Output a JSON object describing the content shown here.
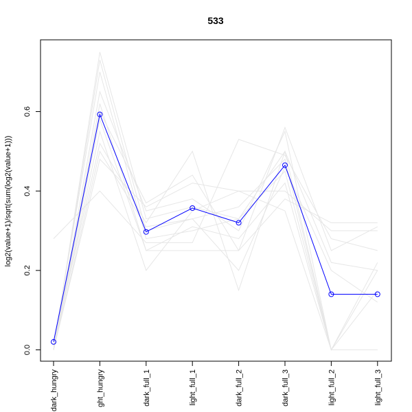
{
  "chart_data": {
    "type": "line",
    "title": "533",
    "xlabel": "",
    "ylabel": "log2(value+1)/sqrt(sum(log2(value+1)))",
    "categories": [
      "dark_hungry",
      "light_hungry",
      "dark_full_1",
      "light_full_1",
      "dark_full_2",
      "dark_full_3",
      "light_full_2",
      "light_full_3"
    ],
    "category_labels_visible": [
      "dark_hungry",
      "ght_hungry",
      "dark_full_1",
      "light_full_1",
      "dark_full_2",
      "dark_full_3",
      "light_full_2",
      "light_full_3"
    ],
    "ylim": [
      0.0,
      0.7
    ],
    "yticks": [
      0.0,
      0.2,
      0.4,
      0.6
    ],
    "ytick_labels": [
      "0.0",
      "0.2",
      "0.4",
      "0.6"
    ],
    "grid": false,
    "highlight_series": {
      "values": [
        0.02,
        0.593,
        0.297,
        0.357,
        0.32,
        0.465,
        0.14,
        0.14
      ],
      "color": "#0000ff",
      "marker": "open-circle"
    },
    "background_series_color": "#e6e6e6",
    "background_series": [
      {
        "values": [
          0.0,
          0.75,
          0.33,
          0.36,
          0.33,
          0.5,
          0.0,
          0.0
        ]
      },
      {
        "values": [
          0.0,
          0.73,
          0.3,
          0.33,
          0.36,
          0.48,
          0.0,
          0.22
        ]
      },
      {
        "values": [
          0.01,
          0.7,
          0.28,
          0.3,
          0.33,
          0.45,
          0.0,
          0.15
        ]
      },
      {
        "values": [
          0.0,
          0.65,
          0.35,
          0.38,
          0.3,
          0.55,
          0.0,
          0.0
        ]
      },
      {
        "values": [
          0.0,
          0.62,
          0.25,
          0.31,
          0.28,
          0.42,
          0.0,
          0.2
        ]
      },
      {
        "values": [
          0.0,
          0.6,
          0.37,
          0.44,
          0.25,
          0.56,
          0.25,
          0.31
        ]
      },
      {
        "values": [
          0.0,
          0.55,
          0.2,
          0.35,
          0.4,
          0.4,
          0.3,
          0.3
        ]
      },
      {
        "values": [
          0.01,
          0.52,
          0.32,
          0.5,
          0.15,
          0.5,
          0.22,
          0.2
        ]
      },
      {
        "values": [
          0.28,
          0.4,
          0.27,
          0.27,
          0.53,
          0.49,
          0.28,
          0.25
        ]
      },
      {
        "values": [
          0.0,
          0.48,
          0.36,
          0.42,
          0.4,
          0.35,
          0.0,
          0.0
        ]
      },
      {
        "values": [
          0.0,
          0.58,
          0.25,
          0.25,
          0.25,
          0.38,
          0.32,
          0.32
        ]
      },
      {
        "values": [
          0.0,
          0.5,
          0.31,
          0.33,
          0.2,
          0.46,
          0.2,
          0.12
        ]
      }
    ]
  }
}
